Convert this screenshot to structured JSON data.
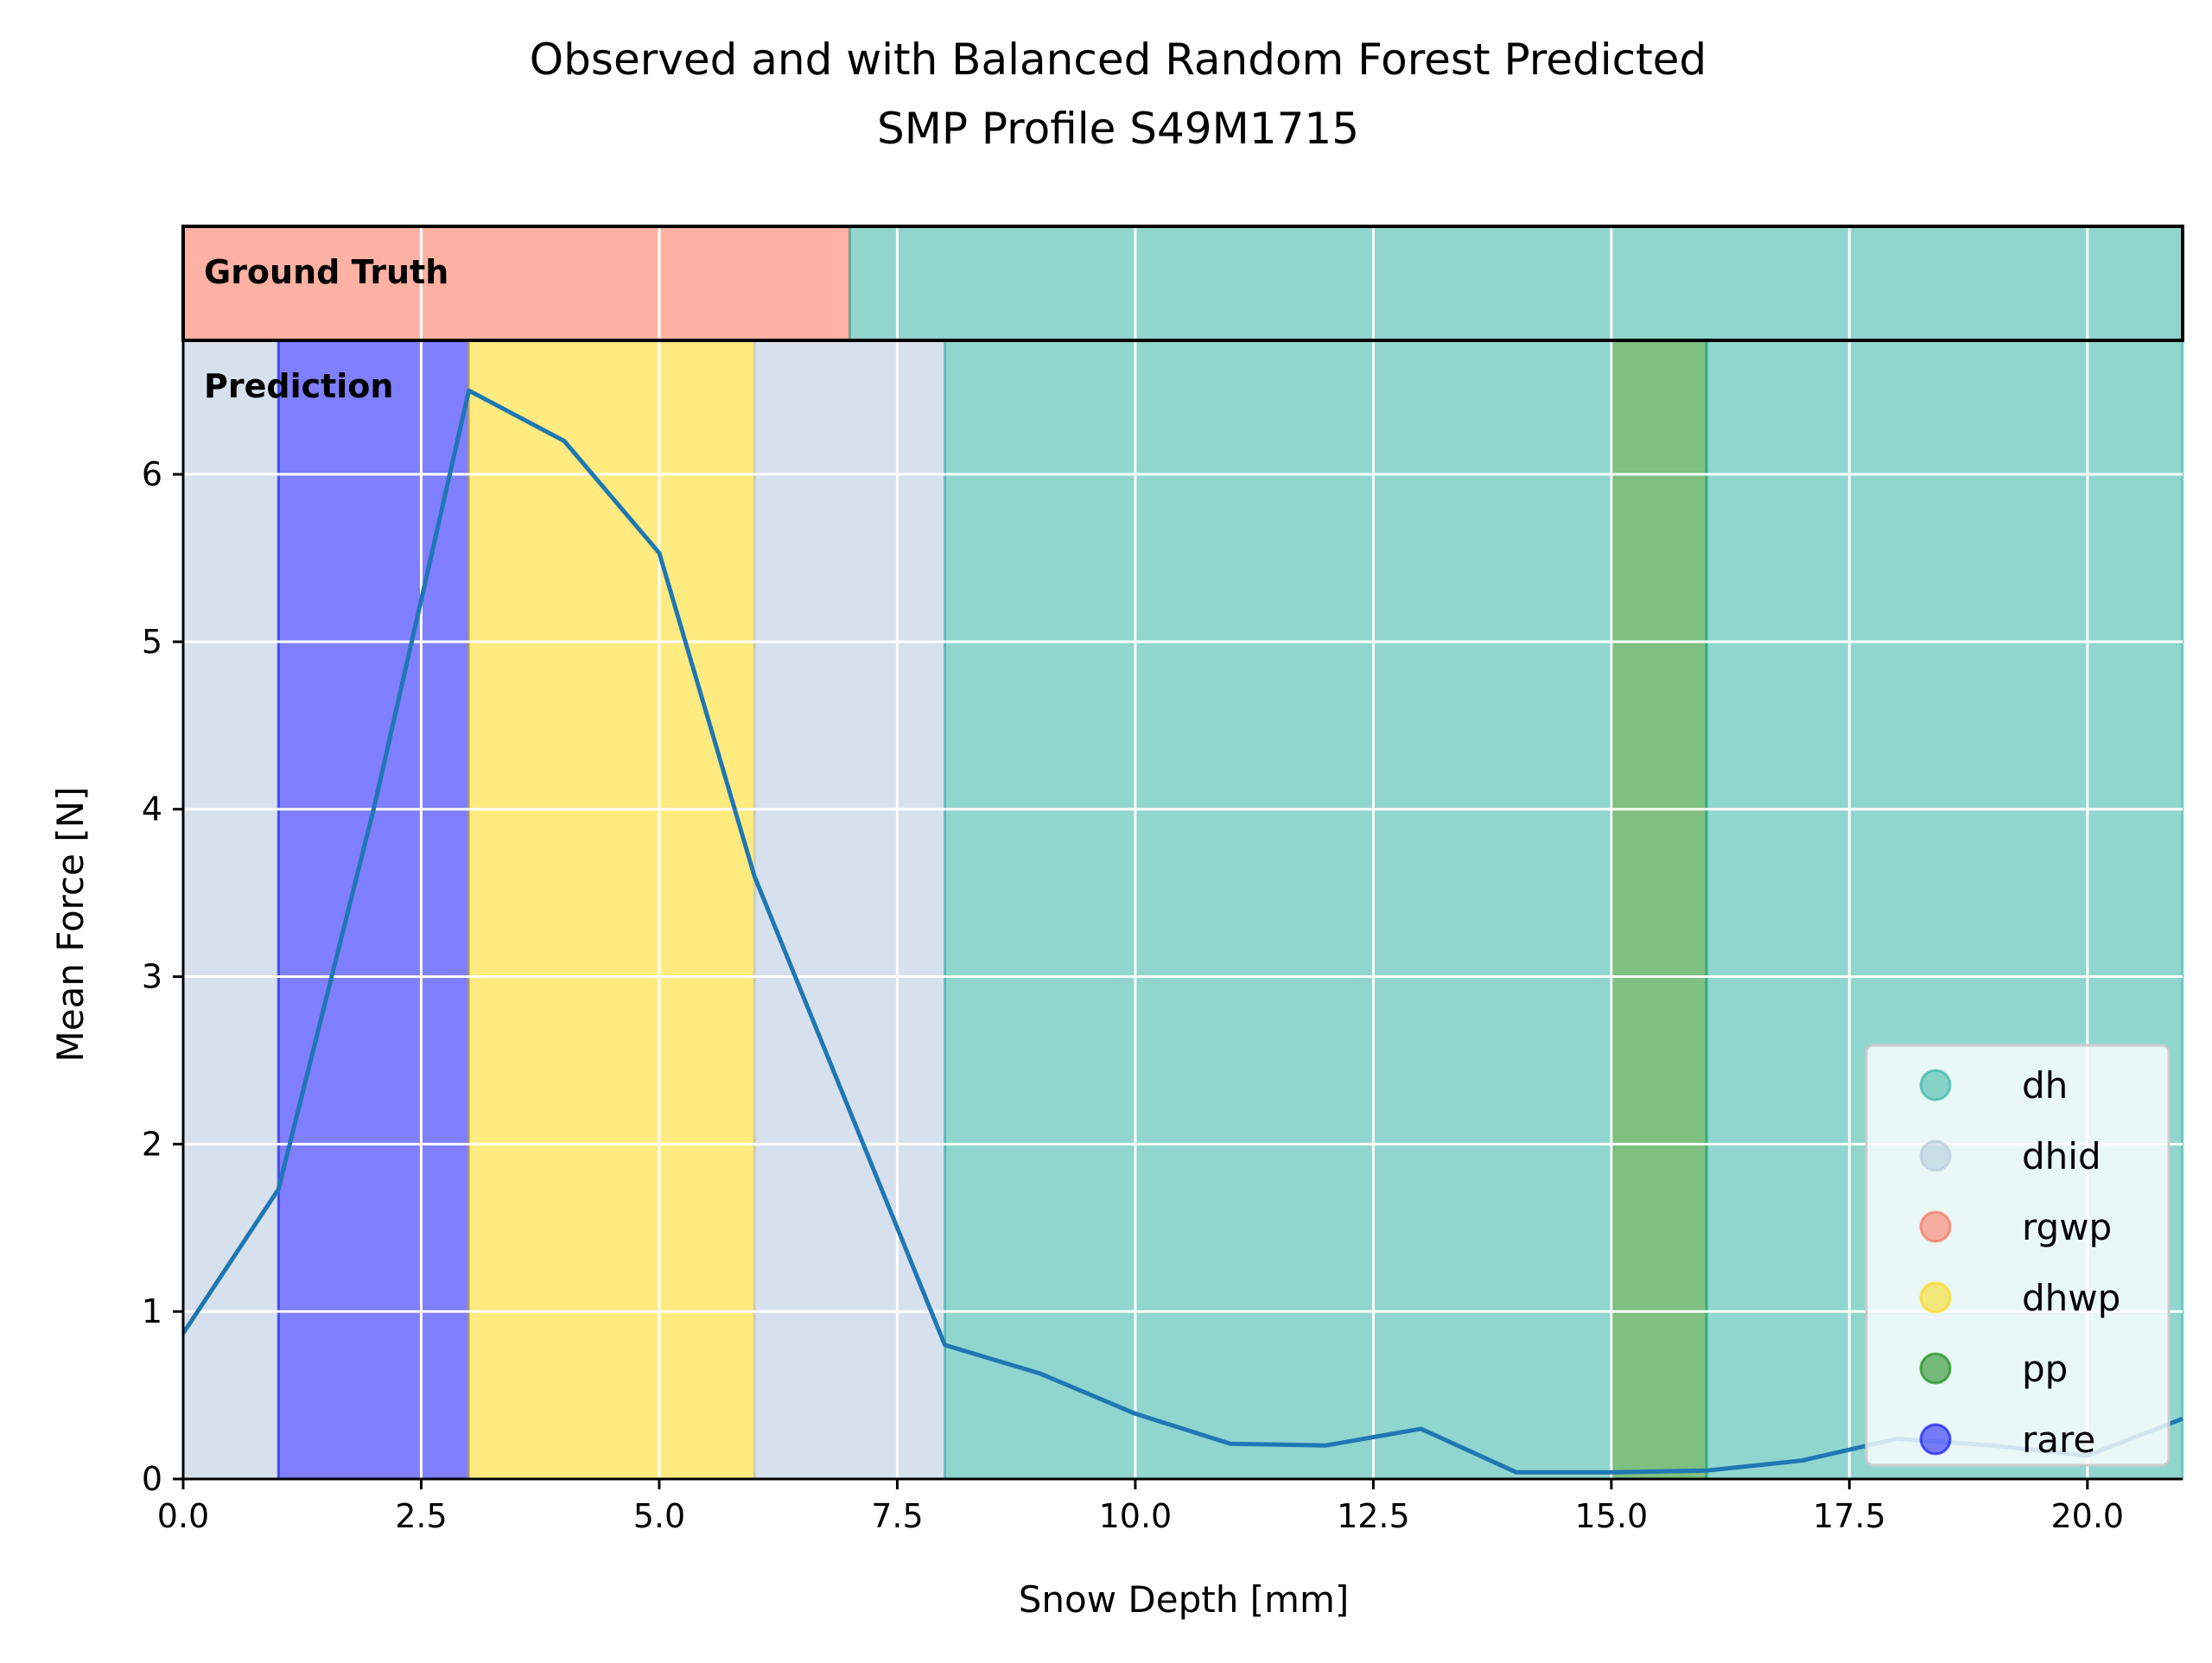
{
  "chart_data": {
    "type": "line",
    "title": [
      "Observed and with Balanced Random Forest Predicted",
      "SMP Profile S49M1715"
    ],
    "xlabel": "Snow Depth [mm]",
    "ylabel": "Mean Force [N]",
    "xlim": [
      0,
      21
    ],
    "ylim": [
      0,
      6.8
    ],
    "x_ticks": [
      0.0,
      2.5,
      5.0,
      7.5,
      10.0,
      12.5,
      15.0,
      17.5,
      20.0
    ],
    "x_tick_labels": [
      "0.0",
      "2.5",
      "5.0",
      "7.5",
      "10.0",
      "12.5",
      "15.0",
      "17.5",
      "20.0"
    ],
    "y_ticks": [
      0,
      1,
      2,
      3,
      4,
      5,
      6
    ],
    "y_tick_labels": [
      "0",
      "1",
      "2",
      "3",
      "4",
      "5",
      "6"
    ],
    "grid": true,
    "legend_position": "lower-right",
    "series": [
      {
        "color": "#1f77b4",
        "x": [
          0,
          1,
          2,
          3,
          4,
          5,
          6,
          7,
          8,
          9,
          10,
          11,
          12,
          13,
          14,
          15,
          16,
          17,
          18,
          19,
          20,
          21
        ],
        "y": [
          0.87,
          1.73,
          4.0,
          6.5,
          6.2,
          5.53,
          3.6,
          2.2,
          0.8,
          0.63,
          0.39,
          0.21,
          0.2,
          0.3,
          0.04,
          0.04,
          0.05,
          0.11,
          0.24,
          0.2,
          0.14,
          0.36
        ]
      }
    ],
    "classes": [
      {
        "label": "dh",
        "color": "#21ada0"
      },
      {
        "label": "dhid",
        "color": "#b0c4de"
      },
      {
        "label": "rgwp",
        "color": "#ff6347"
      },
      {
        "label": "dhwp",
        "color": "#ffd700"
      },
      {
        "label": "pp",
        "color": "#008000"
      },
      {
        "label": "rare",
        "color": "#0000ff"
      }
    ],
    "ground_truth_label": "Ground Truth",
    "prediction_label": "Prediction",
    "ground_truth_segments": [
      {
        "from": 0,
        "to": 7,
        "class": "rgwp"
      },
      {
        "from": 7,
        "to": 21,
        "class": "dh"
      }
    ],
    "prediction_segments": [
      {
        "from": 0,
        "to": 1,
        "class": "dhid"
      },
      {
        "from": 1,
        "to": 3,
        "class": "rare"
      },
      {
        "from": 3,
        "to": 6,
        "class": "dhwp"
      },
      {
        "from": 6,
        "to": 8,
        "class": "dhid"
      },
      {
        "from": 8,
        "to": 15,
        "class": "dh"
      },
      {
        "from": 15,
        "to": 16,
        "class": "pp"
      },
      {
        "from": 16,
        "to": 21,
        "class": "dh"
      }
    ]
  }
}
